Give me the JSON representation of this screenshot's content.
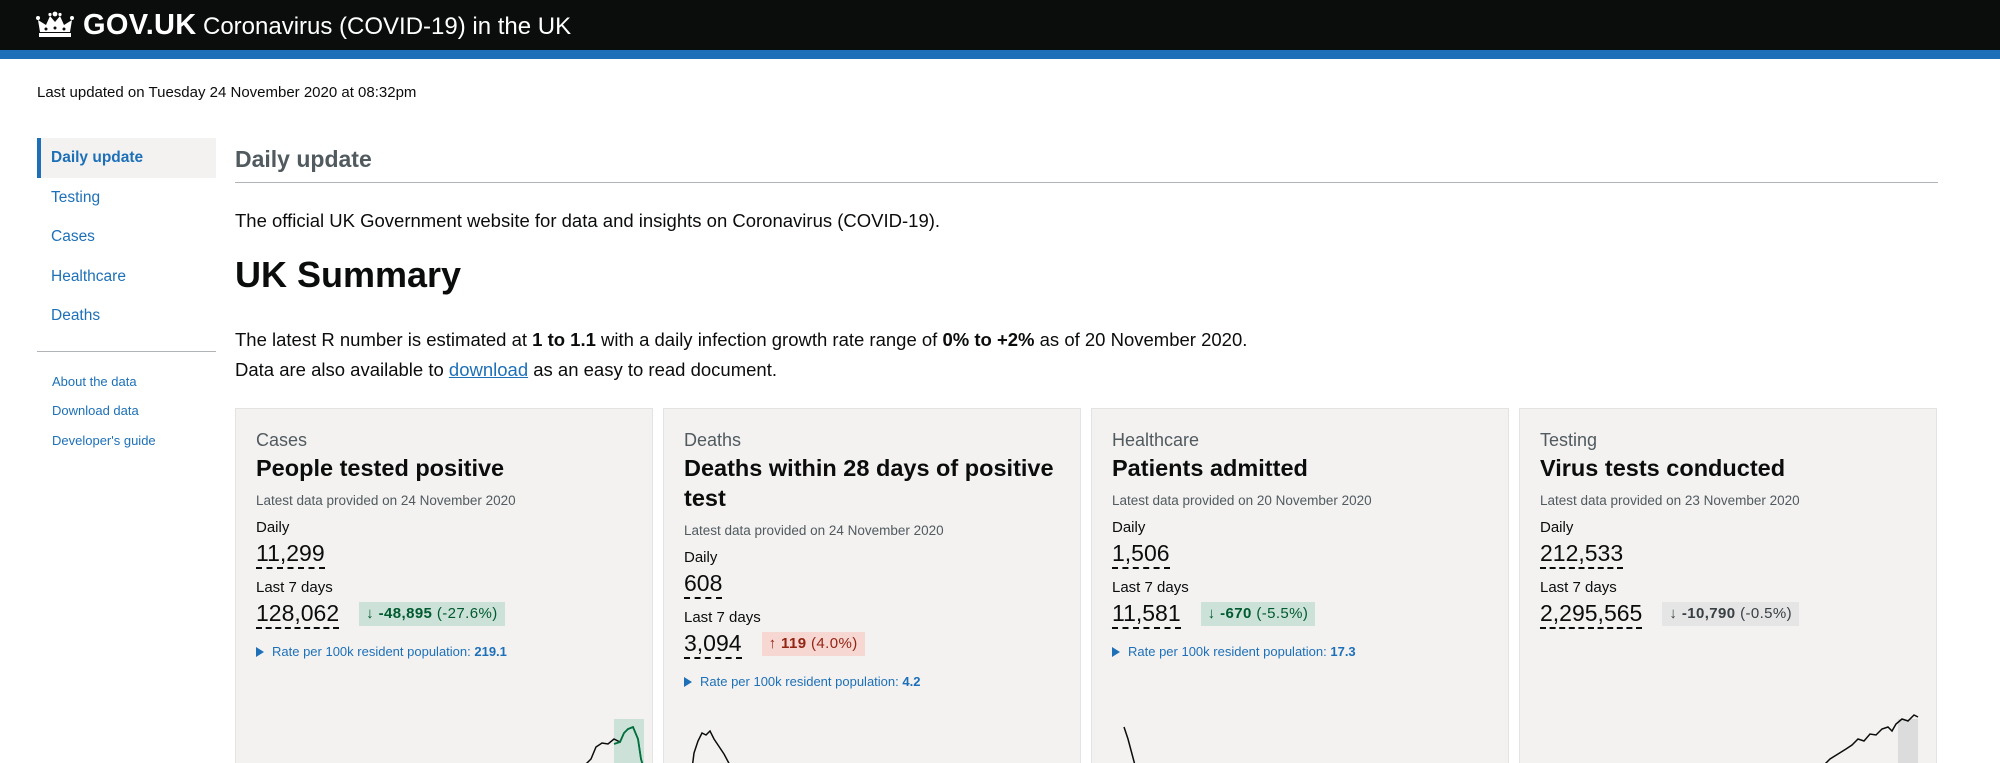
{
  "header": {
    "logo": "GOV.UK",
    "service_name": "Coronavirus (COVID-19) in the UK",
    "crown_icon": "crown-icon"
  },
  "last_updated": "Last updated on Tuesday 24 November 2020 at 08:32pm",
  "sidenav": {
    "items": [
      {
        "label": "Daily update",
        "active": true
      },
      {
        "label": "Testing"
      },
      {
        "label": "Cases"
      },
      {
        "label": "Healthcare"
      },
      {
        "label": "Deaths"
      }
    ],
    "links": [
      {
        "label": "About the data"
      },
      {
        "label": "Download data"
      },
      {
        "label": "Developer's guide"
      }
    ]
  },
  "main": {
    "heading": "Daily update",
    "intro": "The official UK Government website for data and insights on Coronavirus (COVID-19).",
    "summary_title": "UK Summary",
    "r_text_1": "The latest R number is estimated at ",
    "r_value": "1 to 1.1",
    "r_text_2": " with a daily infection growth rate range of ",
    "growth_range": "0% to +2%",
    "r_text_3": " as of 20 November 2020.",
    "download_pre": "Data are also available to ",
    "download_link": "download",
    "download_post": " as an easy to read document."
  },
  "cards": [
    {
      "category": "Cases",
      "title": "People tested positive",
      "provided": "Latest data provided on 24 November 2020",
      "daily_label": "Daily",
      "daily_value": "11,299",
      "week_label": "Last 7 days",
      "week_value": "128,062",
      "change_arrow": "↓",
      "change_value": "-48,895",
      "change_pct": "(-27.6%)",
      "change_style": "down-green",
      "rate_label": "Rate per 100k resident population: ",
      "rate_value": "219.1"
    },
    {
      "category": "Deaths",
      "title": "Deaths within 28 days of positive test",
      "provided": "Latest data provided on 24 November 2020",
      "daily_label": "Daily",
      "daily_value": "608",
      "week_label": "Last 7 days",
      "week_value": "3,094",
      "change_arrow": "↑",
      "change_value": "119",
      "change_pct": "(4.0%)",
      "change_style": "up-red",
      "rate_label": "Rate per 100k resident population: ",
      "rate_value": "4.2"
    },
    {
      "category": "Healthcare",
      "title": "Patients admitted",
      "provided": "Latest data provided on 20 November 2020",
      "daily_label": "Daily",
      "daily_value": "1,506",
      "week_label": "Last 7 days",
      "week_value": "11,581",
      "change_arrow": "↓",
      "change_value": "-670",
      "change_pct": "(-5.5%)",
      "change_style": "down-green",
      "rate_label": "Rate per 100k resident population: ",
      "rate_value": "17.3"
    },
    {
      "category": "Testing",
      "title": "Virus tests conducted",
      "provided": "Latest data provided on 23 November 2020",
      "daily_label": "Daily",
      "daily_value": "212,533",
      "week_label": "Last 7 days",
      "week_value": "2,295,565",
      "change_arrow": "↓",
      "change_value": "-10,790",
      "change_pct": "(-0.5%)",
      "change_style": "down-grey",
      "rate_label": "",
      "rate_value": ""
    }
  ],
  "colors": {
    "header_bg": "#0b0c0c",
    "brand_blue": "#1d70b8",
    "card_bg": "#f3f2f1",
    "green_bg": "#cce2d8",
    "green_text": "#005a30",
    "red_bg": "#f6d7d2",
    "red_text": "#942514"
  }
}
